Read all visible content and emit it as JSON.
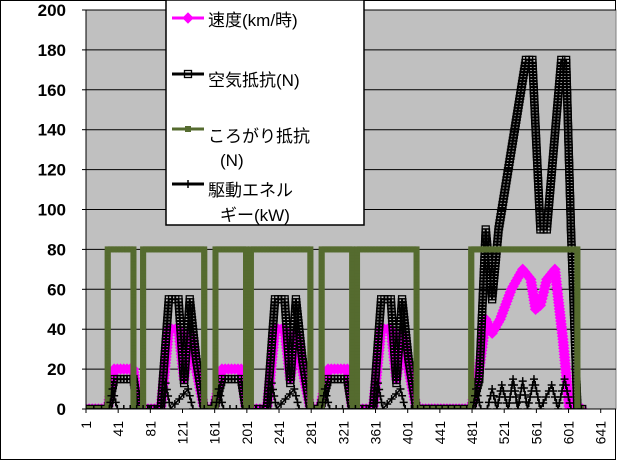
{
  "chart_data": {
    "type": "line",
    "y_range": [
      0,
      200
    ],
    "y_ticks": [
      "0",
      "20",
      "40",
      "60",
      "80",
      "100",
      "120",
      "140",
      "160",
      "180",
      "200"
    ],
    "x_range": [
      1,
      660
    ],
    "x_ticks": [
      "1",
      "41",
      "81",
      "121",
      "161",
      "201",
      "241",
      "281",
      "321",
      "361",
      "401",
      "441",
      "481",
      "521",
      "561",
      "601",
      "641"
    ],
    "grid": "horizontal",
    "legend_position": "top-left inside plot",
    "background_color": "#c0c0c0",
    "series": [
      {
        "name": "速度(km/時)",
        "color": "#ff00ff",
        "marker": "diamond",
        "points": [
          [
            1,
            0
          ],
          [
            28,
            0
          ],
          [
            36,
            20
          ],
          [
            60,
            20
          ],
          [
            66,
            0
          ],
          [
            94,
            0
          ],
          [
            104,
            40
          ],
          [
            116,
            40
          ],
          [
            123,
            15
          ],
          [
            130,
            38
          ],
          [
            138,
            20
          ],
          [
            148,
            0
          ],
          [
            160,
            0
          ],
          [
            170,
            20
          ],
          [
            194,
            20
          ],
          [
            200,
            0
          ],
          [
            226,
            0
          ],
          [
            236,
            40
          ],
          [
            248,
            40
          ],
          [
            255,
            15
          ],
          [
            262,
            38
          ],
          [
            270,
            20
          ],
          [
            280,
            0
          ],
          [
            292,
            0
          ],
          [
            302,
            20
          ],
          [
            326,
            20
          ],
          [
            332,
            0
          ],
          [
            358,
            0
          ],
          [
            368,
            40
          ],
          [
            380,
            40
          ],
          [
            387,
            15
          ],
          [
            394,
            38
          ],
          [
            402,
            20
          ],
          [
            412,
            0
          ],
          [
            480,
            0
          ],
          [
            490,
            20
          ],
          [
            498,
            45
          ],
          [
            506,
            38
          ],
          [
            516,
            45
          ],
          [
            530,
            60
          ],
          [
            544,
            70
          ],
          [
            554,
            65
          ],
          [
            560,
            50
          ],
          [
            566,
            52
          ],
          [
            574,
            65
          ],
          [
            584,
            70
          ],
          [
            594,
            35
          ],
          [
            602,
            0
          ],
          [
            618,
            0
          ]
        ]
      },
      {
        "name": "空気抵抗(N)",
        "color": "#000000",
        "marker": "hollow-square",
        "points": [
          [
            1,
            0
          ],
          [
            28,
            0
          ],
          [
            36,
            15
          ],
          [
            60,
            15
          ],
          [
            66,
            0
          ],
          [
            94,
            0
          ],
          [
            104,
            55
          ],
          [
            116,
            55
          ],
          [
            123,
            13
          ],
          [
            130,
            55
          ],
          [
            138,
            25
          ],
          [
            148,
            0
          ],
          [
            160,
            0
          ],
          [
            170,
            15
          ],
          [
            194,
            15
          ],
          [
            200,
            0
          ],
          [
            226,
            0
          ],
          [
            236,
            55
          ],
          [
            248,
            55
          ],
          [
            255,
            13
          ],
          [
            262,
            55
          ],
          [
            270,
            25
          ],
          [
            280,
            0
          ],
          [
            292,
            0
          ],
          [
            302,
            15
          ],
          [
            326,
            15
          ],
          [
            332,
            0
          ],
          [
            358,
            0
          ],
          [
            368,
            55
          ],
          [
            380,
            55
          ],
          [
            387,
            13
          ],
          [
            394,
            55
          ],
          [
            402,
            25
          ],
          [
            412,
            0
          ],
          [
            480,
            0
          ],
          [
            490,
            15
          ],
          [
            498,
            90
          ],
          [
            506,
            55
          ],
          [
            514,
            90
          ],
          [
            530,
            130
          ],
          [
            548,
            175
          ],
          [
            556,
            175
          ],
          [
            566,
            90
          ],
          [
            574,
            90
          ],
          [
            592,
            175
          ],
          [
            598,
            175
          ],
          [
            604,
            90
          ],
          [
            612,
            0
          ],
          [
            618,
            0
          ]
        ]
      },
      {
        "name": "ころがり抵抗(N)",
        "color": "#556b2f",
        "marker": "filled-square",
        "points": [
          [
            1,
            0
          ],
          [
            28,
            0
          ],
          [
            28,
            80
          ],
          [
            60,
            80
          ],
          [
            60,
            0
          ],
          [
            72,
            0
          ],
          [
            72,
            80
          ],
          [
            148,
            80
          ],
          [
            148,
            0
          ],
          [
            162,
            0
          ],
          [
            162,
            80
          ],
          [
            200,
            80
          ],
          [
            200,
            0
          ],
          [
            206,
            0
          ],
          [
            206,
            80
          ],
          [
            280,
            80
          ],
          [
            280,
            0
          ],
          [
            294,
            0
          ],
          [
            294,
            80
          ],
          [
            332,
            80
          ],
          [
            332,
            0
          ],
          [
            338,
            0
          ],
          [
            338,
            80
          ],
          [
            412,
            80
          ],
          [
            412,
            0
          ],
          [
            480,
            0
          ],
          [
            480,
            80
          ],
          [
            612,
            80
          ],
          [
            612,
            0
          ],
          [
            617,
            0
          ]
        ]
      },
      {
        "name": "駆動エネルギー(kW)",
        "color": "#000000",
        "marker": "plus",
        "points": [
          [
            1,
            0
          ],
          [
            30,
            0
          ],
          [
            34,
            10
          ],
          [
            40,
            0
          ],
          [
            96,
            0
          ],
          [
            100,
            13
          ],
          [
            106,
            0
          ],
          [
            128,
            10
          ],
          [
            134,
            0
          ],
          [
            148,
            0
          ],
          [
            162,
            0
          ],
          [
            166,
            10
          ],
          [
            172,
            0
          ],
          [
            228,
            0
          ],
          [
            232,
            13
          ],
          [
            238,
            0
          ],
          [
            260,
            10
          ],
          [
            266,
            0
          ],
          [
            294,
            0
          ],
          [
            298,
            10
          ],
          [
            304,
            0
          ],
          [
            360,
            0
          ],
          [
            364,
            13
          ],
          [
            370,
            0
          ],
          [
            392,
            10
          ],
          [
            398,
            0
          ],
          [
            482,
            0
          ],
          [
            486,
            10
          ],
          [
            492,
            0
          ],
          [
            500,
            0
          ],
          [
            506,
            10
          ],
          [
            512,
            0
          ],
          [
            518,
            12
          ],
          [
            526,
            0
          ],
          [
            532,
            15
          ],
          [
            538,
            0
          ],
          [
            544,
            14
          ],
          [
            550,
            0
          ],
          [
            558,
            15
          ],
          [
            566,
            0
          ],
          [
            580,
            12
          ],
          [
            588,
            0
          ],
          [
            596,
            15
          ],
          [
            604,
            0
          ],
          [
            617,
            0
          ]
        ]
      }
    ]
  }
}
